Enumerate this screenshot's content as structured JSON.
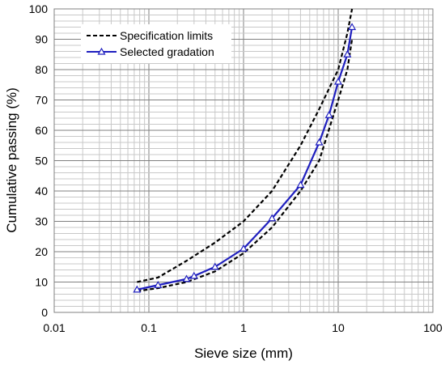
{
  "chart_data": {
    "type": "line",
    "xscale": "log",
    "xlim": [
      0.01,
      100
    ],
    "ylim": [
      0,
      100
    ],
    "xlabel": "Sieve size (mm)",
    "ylabel": "Cumulative passing (%)",
    "x_ticks": [
      "0.01",
      "0.1",
      "1",
      "10",
      "100"
    ],
    "y_ticks": [
      "0",
      "10",
      "20",
      "30",
      "40",
      "50",
      "60",
      "70",
      "80",
      "90",
      "100"
    ],
    "grid": true,
    "legend_position": "top-left",
    "legend": [
      "Specification limits",
      "Selected gradation"
    ],
    "series": [
      {
        "name": "Specification limits",
        "style": "dashed",
        "color": "#000000",
        "x": [
          0.075,
          0.125,
          0.25,
          0.5,
          1,
          2,
          4,
          6.3,
          10,
          12.5,
          14
        ],
        "y": [
          10,
          11.5,
          17,
          23,
          30,
          40,
          55,
          67,
          80,
          92,
          100
        ]
      },
      {
        "name": "Specification limits",
        "style": "dashed",
        "color": "#000000",
        "x": [
          0.075,
          0.125,
          0.25,
          0.5,
          1,
          2,
          4,
          6.3,
          10,
          12.5,
          14
        ],
        "y": [
          7,
          8,
          10,
          13.5,
          19.5,
          28,
          40,
          50,
          70,
          80,
          90
        ]
      },
      {
        "name": "Selected gradation",
        "style": "solid",
        "marker": "triangle",
        "color": "#1f1fbf",
        "x": [
          0.075,
          0.125,
          0.25,
          0.3,
          0.5,
          1,
          2,
          4,
          6.3,
          8,
          10,
          12.5,
          14
        ],
        "y": [
          7.5,
          9,
          11,
          12,
          15,
          21,
          31,
          42,
          56,
          65,
          76,
          85,
          94
        ]
      }
    ]
  }
}
